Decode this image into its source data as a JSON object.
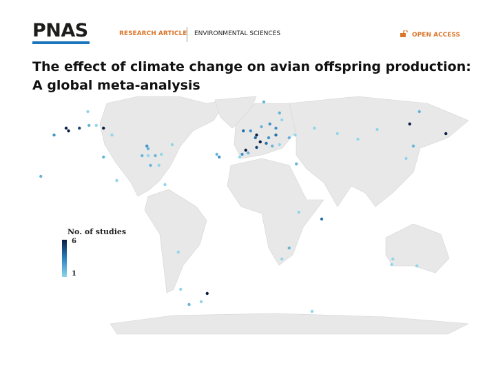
{
  "header": {
    "logo": "PNAS",
    "article_type": "RESEARCH ARTICLE",
    "subject": "ENVIRONMENTAL SCIENCES",
    "access": "OPEN ACCESS"
  },
  "title_lines": [
    "The effect of climate change on avian offspring production:",
    "A global meta-analysis"
  ],
  "chart_data": {
    "type": "map",
    "legend_title": "No. of studies",
    "clim": [
      1,
      6
    ],
    "cticks": [
      6,
      1
    ],
    "colors": [
      "#8fd6ea",
      "#2c82bf",
      "#0a1d45"
    ],
    "lon": [
      -130,
      -148,
      -146,
      -137,
      -129,
      -123,
      -117,
      -110,
      -158,
      -169,
      -117,
      -106,
      -66,
      -85,
      -80,
      -80,
      -74,
      -81,
      -69,
      -60,
      -71,
      -78,
      -23,
      -21,
      16,
      -1,
      5,
      10,
      14,
      21,
      29,
      31,
      26,
      20,
      13,
      10,
      1,
      -2,
      3,
      18,
      23,
      29,
      37,
      42,
      26,
      9,
      -4,
      43,
      45,
      64,
      37,
      31,
      -55,
      -53,
      -46,
      -36,
      -31,
      58,
      77,
      94,
      110,
      145,
      137,
      167,
      140,
      134,
      123,
      122,
      143,
      56
    ],
    "lat": [
      64,
      52,
      50,
      52,
      54,
      54,
      52,
      47,
      47,
      17,
      31,
      14,
      11,
      32,
      37,
      32,
      32,
      39,
      33,
      40,
      25,
      25,
      33,
      31,
      71,
      50,
      50,
      47,
      53,
      55,
      63,
      58,
      47,
      45,
      42,
      38,
      36,
      33,
      34,
      41,
      39,
      40,
      45,
      47,
      52,
      45,
      31,
      26,
      -9,
      -14,
      -35,
      -43,
      -38,
      -65,
      -76,
      -74,
      -68,
      52,
      48,
      44,
      51,
      64,
      55,
      48,
      39,
      30,
      -43,
      -47,
      -48,
      -81
    ],
    "values": [
      1,
      6,
      6,
      5,
      2,
      1,
      6,
      1,
      3,
      2,
      2,
      1,
      1,
      2,
      2,
      1,
      2,
      3,
      1,
      1,
      1,
      2,
      2,
      3,
      2,
      4,
      3,
      6,
      2,
      3,
      2,
      1,
      4,
      3,
      6,
      5,
      6,
      3,
      2,
      4,
      2,
      1,
      2,
      1,
      3,
      4,
      1,
      2,
      1,
      4,
      2,
      1,
      1,
      1,
      2,
      1,
      6,
      1,
      1,
      1,
      1,
      2,
      6,
      6,
      2,
      1,
      1,
      1,
      1,
      1
    ]
  }
}
